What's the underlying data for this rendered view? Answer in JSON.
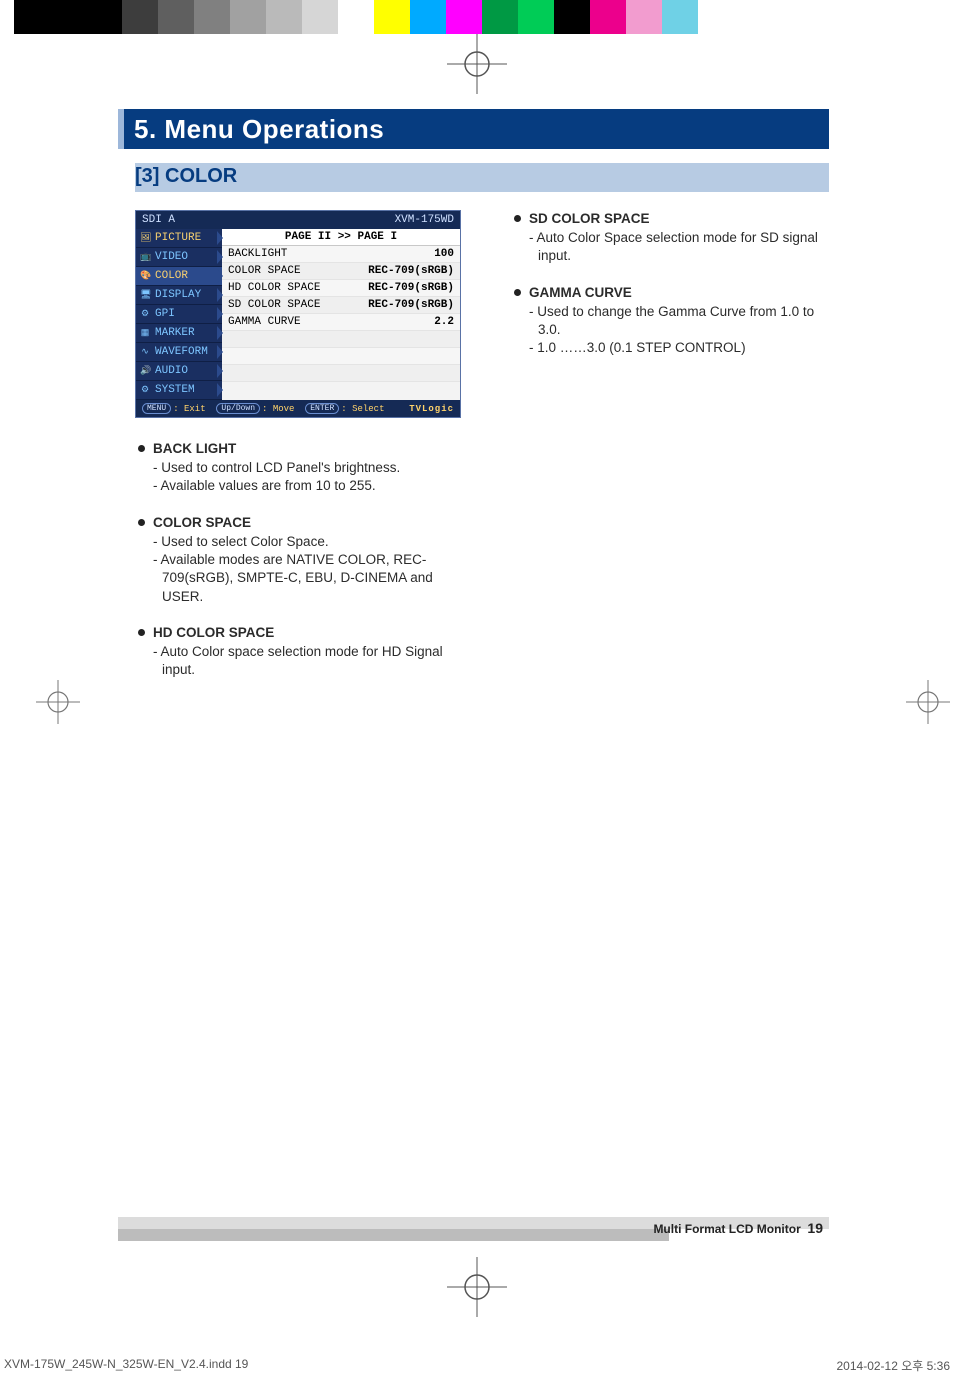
{
  "colorbar": {
    "colors": [
      "#000000",
      "#000000",
      "#000000",
      "#3d3d3d",
      "#5f5f5f",
      "#808080",
      "#a1a1a1",
      "#bababa",
      "#d6d6d6",
      "#ffffff",
      "#ffff00",
      "#00aaff",
      "#ff00ff",
      "#009944",
      "#00cc56",
      "#000000",
      "#ec008c",
      "#f29ccf",
      "#6fd1e6",
      "#ffffff"
    ]
  },
  "header": {
    "title": "5. Menu Operations"
  },
  "section": {
    "label": "[3] COLOR"
  },
  "osd": {
    "source": "SDI A",
    "model": "XVM-175WD",
    "page_label": "PAGE II >> PAGE I",
    "nav": [
      {
        "label": "PICTURE",
        "icon": "🖼",
        "selected": false,
        "arrow": true,
        "color": "#f7d070"
      },
      {
        "label": "VIDEO",
        "icon": "📺",
        "selected": false,
        "arrow": true,
        "color": "#7dc5ff"
      },
      {
        "label": "COLOR",
        "icon": "🎨",
        "selected": true,
        "arrow": true,
        "color": "#f7d070"
      },
      {
        "label": "DISPLAY",
        "icon": "🖥",
        "selected": false,
        "arrow": true,
        "color": "#7dc5ff"
      },
      {
        "label": "GPI",
        "icon": "⚙",
        "selected": false,
        "arrow": true,
        "color": "#7dc5ff"
      },
      {
        "label": "MARKER",
        "icon": "▦",
        "selected": false,
        "arrow": true,
        "color": "#7dc5ff"
      },
      {
        "label": "WAVEFORM",
        "icon": "∿",
        "selected": false,
        "arrow": true,
        "color": "#7dc5ff"
      },
      {
        "label": "AUDIO",
        "icon": "🔊",
        "selected": false,
        "arrow": true,
        "color": "#7dc5ff"
      },
      {
        "label": "SYSTEM",
        "icon": "⚙",
        "selected": false,
        "arrow": true,
        "color": "#7dc5ff"
      }
    ],
    "rows": [
      {
        "k": "BACKLIGHT",
        "v": "100"
      },
      {
        "k": "COLOR SPACE",
        "v": "REC-709(sRGB)"
      },
      {
        "k": "HD COLOR SPACE",
        "v": "REC-709(sRGB)"
      },
      {
        "k": "SD COLOR SPACE",
        "v": "REC-709(sRGB)"
      },
      {
        "k": "GAMMA CURVE",
        "v": "2.2"
      }
    ],
    "foot": {
      "menu": "MENU",
      "menu_l": ": Exit",
      "upd": "Up/Down",
      "upd_l": ": Move",
      "enter": "ENTER",
      "enter_l": ": Select",
      "logo": "TVLogic"
    }
  },
  "left_items": [
    {
      "name": "BACK LIGHT",
      "lines": [
        "- Used to control LCD Panel's brightness.",
        "- Available values are from 10 to 255."
      ]
    },
    {
      "name": "COLOR SPACE",
      "lines": [
        "- Used to select Color Space.",
        "- Available modes are NATIVE COLOR, REC-709(sRGB), SMPTE-C, EBU, D-CINEMA and USER."
      ]
    },
    {
      "name": "HD COLOR SPACE",
      "lines": [
        "- Auto Color space selection mode for HD Signal input."
      ]
    }
  ],
  "right_items": [
    {
      "name": "SD COLOR SPACE",
      "lines": [
        "- Auto Color Space selection mode for SD signal input."
      ]
    },
    {
      "name": "GAMMA CURVE",
      "lines": [
        "- Used to change the Gamma Curve from 1.0 to 3.0.",
        "- 1.0 ……3.0 (0.1 STEP CONTROL)"
      ]
    }
  ],
  "page_foot": {
    "label": "Multi Format LCD Monitor",
    "page": "19"
  },
  "slug": {
    "left": "XVM-175W_245W-N_325W-EN_V2.4.indd   19",
    "right": "2014-02-12   오후 5:36"
  }
}
